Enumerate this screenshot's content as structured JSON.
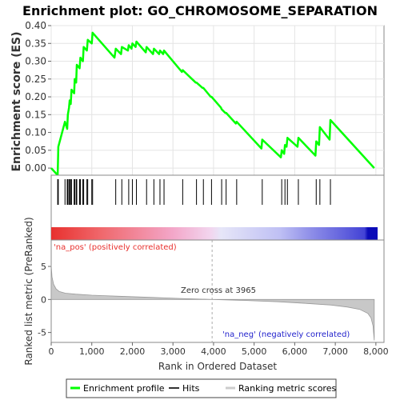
{
  "chart_data": {
    "type": "line",
    "title": "Enrichment plot: GO_CHROMOSOME_SEPARATION",
    "es_panel": {
      "ylabel": "Enrichment score (ES)",
      "ylim": [
        -0.02,
        0.4
      ],
      "yticks": [
        0.0,
        0.05,
        0.1,
        0.15,
        0.2,
        0.25,
        0.3,
        0.35,
        0.4
      ],
      "ytick_labels": [
        "0.00",
        "0.05",
        "0.10",
        "0.15",
        "0.20",
        "0.25",
        "0.30",
        "0.35",
        "0.40"
      ],
      "series": [
        {
          "name": "Enrichment profile",
          "color": "#00ff00",
          "x": [
            0,
            160,
            175,
            340,
            395,
            410,
            440,
            455,
            480,
            500,
            565,
            580,
            615,
            630,
            700,
            720,
            780,
            800,
            880,
            900,
            1000,
            1020,
            1560,
            1590,
            1720,
            1740,
            1890,
            1910,
            1980,
            2000,
            2080,
            2100,
            2330,
            2350,
            2510,
            2530,
            2660,
            2680,
            2760,
            2780,
            3220,
            3240,
            3560,
            3580,
            3730,
            3750,
            3930,
            3950,
            4180,
            4200,
            4290,
            4310,
            4550,
            4570,
            5180,
            5200,
            5660,
            5680,
            5740,
            5760,
            5800,
            5820,
            6070,
            6090,
            6510,
            6530,
            6600,
            6620,
            6860,
            6880,
            7960
          ],
          "y": [
            0.0,
            -0.02,
            0.06,
            0.13,
            0.11,
            0.15,
            0.17,
            0.19,
            0.18,
            0.22,
            0.21,
            0.25,
            0.24,
            0.29,
            0.28,
            0.31,
            0.3,
            0.34,
            0.33,
            0.36,
            0.35,
            0.38,
            0.31,
            0.335,
            0.32,
            0.34,
            0.33,
            0.345,
            0.335,
            0.35,
            0.34,
            0.355,
            0.325,
            0.34,
            0.32,
            0.335,
            0.32,
            0.33,
            0.32,
            0.33,
            0.27,
            0.275,
            0.24,
            0.24,
            0.225,
            0.225,
            0.2,
            0.2,
            0.17,
            0.165,
            0.155,
            0.155,
            0.125,
            0.13,
            0.055,
            0.08,
            0.03,
            0.05,
            0.04,
            0.065,
            0.06,
            0.085,
            0.06,
            0.085,
            0.035,
            0.075,
            0.065,
            0.115,
            0.08,
            0.135,
            0.0
          ]
        }
      ]
    },
    "hits_panel": {
      "name": "Hits",
      "positions": [
        160,
        175,
        340,
        395,
        410,
        440,
        455,
        480,
        500,
        565,
        580,
        615,
        630,
        700,
        720,
        780,
        800,
        880,
        900,
        1000,
        1020,
        1590,
        1740,
        1910,
        2000,
        2100,
        2350,
        2530,
        2680,
        2780,
        3240,
        3580,
        3750,
        3950,
        4200,
        4310,
        4570,
        5200,
        5680,
        5760,
        5820,
        6090,
        6530,
        6620,
        6880
      ]
    },
    "ranked_panel": {
      "name": "Ranking metric scores",
      "ylabel": "Ranked list metric (PreRanked)",
      "xlabel": "Rank in Ordered Dataset",
      "ylim": [
        -6.5,
        9
      ],
      "yticks": [
        -5,
        0,
        5
      ],
      "ytick_labels": [
        "-5",
        "0",
        "5"
      ],
      "metric_x": [
        0,
        20,
        60,
        120,
        200,
        350,
        600,
        1000,
        1600,
        2500,
        3200,
        3965,
        4800,
        5600,
        6300,
        6900,
        7300,
        7600,
        7800,
        7880,
        7930,
        7960
      ],
      "metric_y": [
        5.2,
        3.4,
        2.3,
        1.6,
        1.2,
        0.95,
        0.8,
        0.65,
        0.5,
        0.3,
        0.15,
        0.0,
        -0.15,
        -0.35,
        -0.6,
        -0.85,
        -1.15,
        -1.5,
        -2.1,
        -2.8,
        -4.0,
        -6.2
      ],
      "pos_label": "'na_pos' (positively correlated)",
      "neg_label": "'na_neg' (negatively correlated)",
      "zero_cross_label": "Zero cross at 3965",
      "zero_cross_x": 3965,
      "pos_color": "#e8312e",
      "neg_color": "#2222cc"
    },
    "xaxis": {
      "xlim": [
        0,
        8200
      ],
      "xticks": [
        0,
        1000,
        2000,
        3000,
        4000,
        5000,
        6000,
        7000,
        8000
      ],
      "xtick_labels": [
        "0",
        "1,000",
        "2,000",
        "3,000",
        "4,000",
        "5,000",
        "6,000",
        "7,000",
        "8,000"
      ]
    },
    "legend": {
      "placement": "bottom",
      "items": [
        {
          "label": "Enrichment profile",
          "color": "#00ff00"
        },
        {
          "label": "Hits",
          "color": "#333333"
        },
        {
          "label": "Ranking metric scores",
          "color": "#cccccc"
        }
      ]
    }
  }
}
